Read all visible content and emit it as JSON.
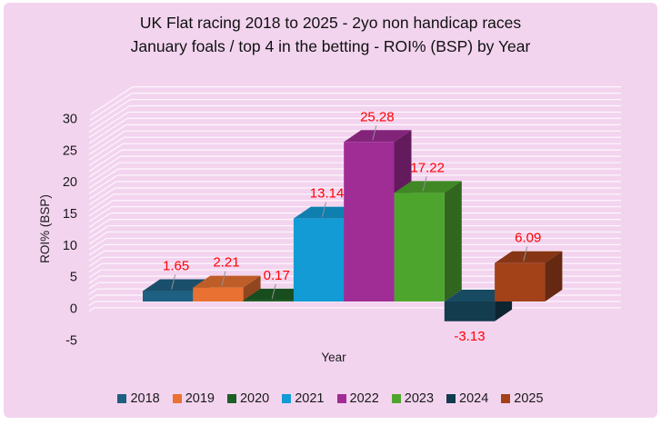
{
  "title": {
    "line1": "UK Flat racing 2018 to 2025 - 2yo non handicap races",
    "line2": "January foals / top 4 in the betting - ROI% (BSP) by Year"
  },
  "chart_data": {
    "type": "bar",
    "style": "3d-column",
    "categories": [
      "2018",
      "2019",
      "2020",
      "2021",
      "2022",
      "2023",
      "2024",
      "2025"
    ],
    "values": [
      1.65,
      2.21,
      0.17,
      13.14,
      25.28,
      17.22,
      -3.13,
      6.09
    ],
    "data_labels": [
      "1.65",
      "2.21",
      "0.17",
      "13.14",
      "25.28",
      "17.22",
      "-3.13",
      "6.09"
    ],
    "colors": [
      "#1E6082",
      "#E97132",
      "#1D5F24",
      "#129BD5",
      "#A02C96",
      "#4EA52E",
      "#133C4E",
      "#A34119"
    ],
    "title": "UK Flat racing 2018 to 2025 - 2yo non handicap races January foals / top 4 in the betting - ROI% (BSP) by Year",
    "xlabel": "Year",
    "ylabel": "ROI% (BSP)",
    "ylim": [
      -5,
      30
    ],
    "yticks": [
      30,
      25,
      20,
      15,
      10,
      5,
      0,
      -5
    ],
    "grid": "minor horizontal white gridlines every 1 unit on 3D back wall",
    "legend_position": "bottom",
    "data_label_color": "#FF0000",
    "background": "#F3D4EF",
    "gridline_color": "rgba(255,255,255,0.8)",
    "leader_line_color": "#909090",
    "tick_label_color": "#1a1a1a"
  }
}
